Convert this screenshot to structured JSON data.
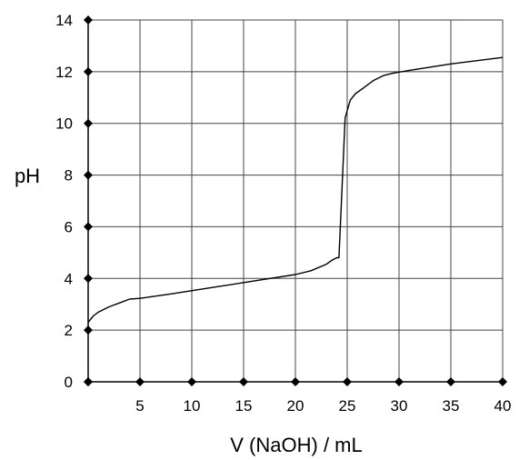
{
  "chart_data": {
    "type": "line",
    "title": "",
    "xlabel": "V (NaOH) / mL",
    "ylabel": "pH",
    "xlim": [
      0,
      40
    ],
    "ylim": [
      0,
      14
    ],
    "x_ticks": [
      0,
      5,
      10,
      15,
      20,
      25,
      30,
      35,
      40
    ],
    "y_ticks": [
      0,
      2,
      4,
      6,
      8,
      10,
      12,
      14
    ],
    "x_tick_labels": [
      "5",
      "10",
      "15",
      "20",
      "25",
      "30",
      "35",
      "40"
    ],
    "y_tick_labels": [
      "0",
      "2",
      "4",
      "6",
      "8",
      "10",
      "12",
      "14"
    ],
    "grid": true,
    "legend": "none",
    "series": [
      {
        "color": "#000000",
        "x": [
          0,
          0.5,
          1,
          2,
          3,
          4,
          5,
          8,
          12,
          16,
          20,
          21.5,
          23,
          23.5,
          24,
          24.2,
          24.5,
          24.8,
          25.0,
          25.3,
          25.8,
          26.5,
          27.5,
          28.5,
          29.5,
          31,
          35,
          40
        ],
        "y": [
          2.3,
          2.55,
          2.7,
          2.9,
          3.05,
          3.2,
          3.23,
          3.4,
          3.65,
          3.9,
          4.15,
          4.3,
          4.55,
          4.7,
          4.8,
          4.8,
          7.5,
          10.2,
          10.5,
          10.9,
          11.15,
          11.35,
          11.65,
          11.85,
          11.95,
          12.05,
          12.3,
          12.55
        ]
      }
    ]
  }
}
